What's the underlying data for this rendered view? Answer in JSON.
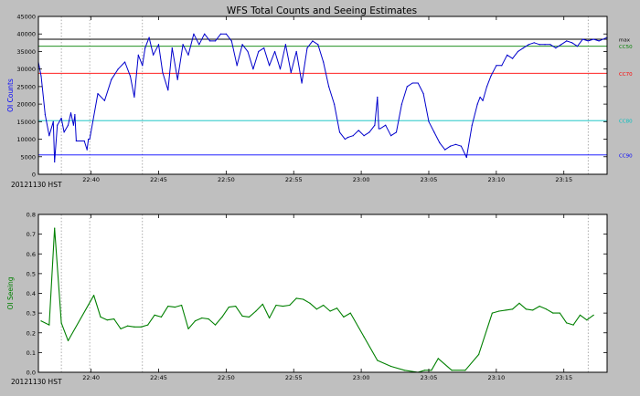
{
  "title": "WFS Total Counts and Seeing Estimates",
  "chart_data": [
    {
      "type": "line",
      "title": "WFS Total Counts and Seeing Estimates",
      "ylabel": "OI Counts",
      "xlabel": "20121130 HST",
      "ylim": [
        0,
        45000
      ],
      "y_ticks": [
        "0",
        "5000",
        "10000",
        "15000",
        "20000",
        "25000",
        "30000",
        "35000",
        "40000",
        "45000"
      ],
      "x_ticks": [
        {
          "t": 40,
          "label": "22:40"
        },
        {
          "t": 45,
          "label": "22:45"
        },
        {
          "t": 50,
          "label": "22:50"
        },
        {
          "t": 55,
          "label": "22:55"
        },
        {
          "t": 60,
          "label": "23:00"
        },
        {
          "t": 65,
          "label": "23:05"
        },
        {
          "t": 70,
          "label": "23:10"
        },
        {
          "t": 75,
          "label": "23:15"
        }
      ],
      "xlim": [
        36.1,
        78.2
      ],
      "vlines": [
        37.8,
        39.9,
        43.8,
        76.8
      ],
      "hlines": [
        {
          "label": "max",
          "value": 38500,
          "color": "#000000"
        },
        {
          "label": "CC50",
          "value": 36500,
          "color": "#008000"
        },
        {
          "label": "CC70",
          "value": 28800,
          "color": "#ff0000"
        },
        {
          "label": "CC80",
          "value": 15300,
          "color": "#00bfbf"
        },
        {
          "label": "CC90",
          "value": 5500,
          "color": "#0000ff"
        }
      ],
      "series": [
        {
          "color": "#0000cc",
          "x": [
            36.1,
            36.3,
            36.6,
            36.9,
            37.2,
            37.3,
            37.5,
            37.8,
            38.0,
            38.3,
            38.5,
            38.7,
            38.8,
            38.9,
            39.5,
            39.7,
            39.8,
            39.9,
            40.5,
            41.0,
            41.5,
            42.0,
            42.5,
            42.9,
            43.2,
            43.5,
            43.8,
            44.0,
            44.3,
            44.6,
            45.0,
            45.3,
            45.7,
            46.0,
            46.4,
            46.8,
            47.2,
            47.6,
            48.0,
            48.4,
            48.8,
            49.2,
            49.6,
            50.0,
            50.4,
            50.8,
            51.2,
            51.6,
            52.0,
            52.4,
            52.8,
            53.2,
            53.6,
            54.0,
            54.4,
            54.8,
            55.2,
            55.6,
            56.0,
            56.4,
            56.8,
            57.2,
            57.6,
            58.0,
            58.4,
            58.8,
            59.0,
            59.4,
            59.8,
            60.2,
            60.6,
            61.0,
            61.2,
            61.3,
            61.4,
            61.8,
            62.2,
            62.6,
            63.0,
            63.4,
            63.8,
            64.2,
            64.6,
            65.0,
            65.4,
            65.8,
            66.2,
            66.6,
            67.0,
            67.4,
            67.8,
            68.2,
            68.6,
            68.8,
            69.0,
            69.3,
            69.6,
            70.0,
            70.4,
            70.8,
            71.2,
            71.6,
            72.0,
            72.4,
            72.8,
            73.2,
            73.6,
            74.0,
            74.4,
            74.8,
            75.2,
            75.6,
            76.0,
            76.4,
            76.8,
            77.2,
            77.6,
            78.2
          ],
          "y": [
            32000,
            28000,
            17000,
            11000,
            15000,
            3500,
            14000,
            16000,
            12000,
            14000,
            17500,
            14000,
            17000,
            9500,
            9500,
            7000,
            10000,
            10000,
            23000,
            21000,
            27000,
            30000,
            32000,
            28000,
            22000,
            34000,
            31000,
            36000,
            39000,
            34000,
            37000,
            29000,
            24000,
            36000,
            27000,
            37000,
            34000,
            40000,
            37000,
            40000,
            38000,
            38000,
            40000,
            40000,
            38000,
            31000,
            37000,
            35000,
            30000,
            35000,
            36000,
            31000,
            35000,
            30000,
            37000,
            29000,
            35000,
            26000,
            36000,
            38000,
            37000,
            32000,
            25000,
            20000,
            12000,
            10000,
            10500,
            11000,
            12500,
            11000,
            12000,
            14000,
            22000,
            13000,
            13000,
            14000,
            11000,
            12000,
            20000,
            25000,
            26000,
            26000,
            23000,
            15000,
            12000,
            9000,
            7000,
            8000,
            8500,
            8000,
            4800,
            14000,
            20000,
            22000,
            21000,
            25000,
            28000,
            31000,
            31000,
            34000,
            33000,
            35000,
            36000,
            37000,
            37500,
            37000,
            37000,
            37000,
            36000,
            37000,
            38000,
            37500,
            36500,
            38500,
            38000,
            38500,
            38000,
            39000
          ]
        }
      ]
    },
    {
      "type": "line",
      "ylabel": "OI Seeing",
      "xlabel": "20121130 HST",
      "ylim": [
        0,
        0.8
      ],
      "y_ticks": [
        "0.0",
        "0.1",
        "0.2",
        "0.3",
        "0.4",
        "0.5",
        "0.6",
        "0.7",
        "0.8"
      ],
      "x_ticks": [
        {
          "t": 40,
          "label": "22:40"
        },
        {
          "t": 45,
          "label": "22:45"
        },
        {
          "t": 50,
          "label": "22:50"
        },
        {
          "t": 55,
          "label": "22:55"
        },
        {
          "t": 60,
          "label": "23:00"
        },
        {
          "t": 65,
          "label": "23:05"
        },
        {
          "t": 70,
          "label": "23:10"
        },
        {
          "t": 75,
          "label": "23:15"
        }
      ],
      "xlim": [
        36.1,
        78.2
      ],
      "vlines": [
        37.8,
        39.9,
        43.8,
        76.8
      ],
      "series": [
        {
          "color": "#008000",
          "x": [
            36.3,
            36.9,
            37.3,
            37.8,
            38.3,
            40.2,
            40.7,
            41.2,
            41.7,
            42.2,
            42.7,
            43.2,
            43.7,
            44.2,
            44.7,
            45.2,
            45.7,
            46.2,
            46.7,
            47.2,
            47.7,
            48.2,
            48.7,
            49.2,
            49.7,
            50.2,
            50.7,
            51.2,
            51.7,
            52.2,
            52.7,
            53.2,
            53.7,
            54.2,
            54.7,
            55.2,
            55.7,
            56.2,
            56.7,
            57.2,
            57.7,
            58.2,
            58.7,
            59.2,
            60.2,
            61.2,
            62.2,
            63.2,
            64.2,
            64.7,
            65.2,
            65.7,
            66.7,
            67.7,
            68.7,
            69.7,
            70.2,
            70.7,
            71.2,
            71.7,
            72.2,
            72.7,
            73.2,
            73.7,
            74.2,
            74.7,
            75.2,
            75.7,
            76.2,
            76.7,
            77.2
          ],
          "y": [
            0.26,
            0.24,
            0.73,
            0.25,
            0.16,
            0.39,
            0.28,
            0.265,
            0.27,
            0.22,
            0.235,
            0.23,
            0.23,
            0.24,
            0.29,
            0.28,
            0.335,
            0.33,
            0.34,
            0.22,
            0.26,
            0.275,
            0.27,
            0.24,
            0.28,
            0.33,
            0.335,
            0.285,
            0.28,
            0.31,
            0.345,
            0.275,
            0.34,
            0.335,
            0.34,
            0.375,
            0.37,
            0.35,
            0.32,
            0.34,
            0.31,
            0.325,
            0.28,
            0.3,
            0.18,
            0.06,
            0.03,
            0.01,
            0.0,
            0.01,
            0.01,
            0.07,
            0.01,
            0.01,
            0.09,
            0.3,
            0.31,
            0.315,
            0.32,
            0.35,
            0.32,
            0.315,
            0.335,
            0.32,
            0.3,
            0.3,
            0.25,
            0.24,
            0.29,
            0.265,
            0.29
          ]
        }
      ]
    }
  ]
}
